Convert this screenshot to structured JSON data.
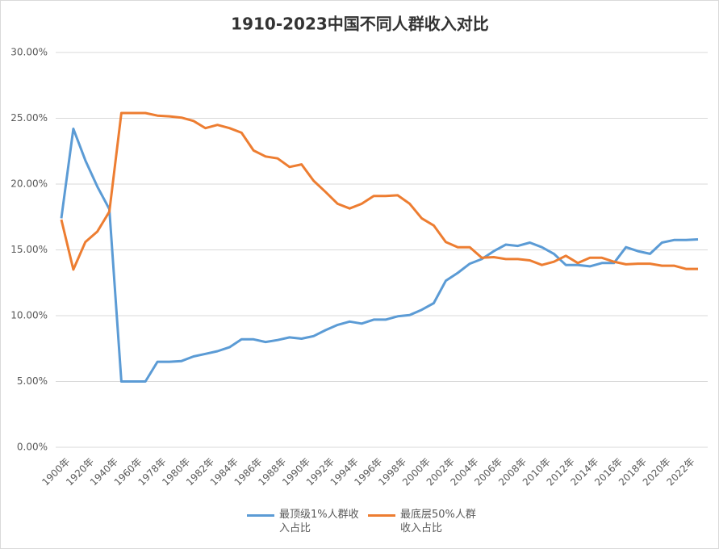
{
  "chart_data": {
    "type": "line",
    "title": "1910-2023中国不同人群收入对比",
    "categories": [
      "1900年",
      null,
      "1920年",
      null,
      "1940年",
      null,
      "1960年",
      null,
      "1978年",
      null,
      "1980年",
      null,
      "1982年",
      null,
      "1984年",
      null,
      "1986年",
      null,
      "1988年",
      null,
      "1990年",
      null,
      "1992年",
      null,
      "1994年",
      null,
      "1996年",
      null,
      "1998年",
      null,
      "2000年",
      null,
      "2002年",
      null,
      "2004年",
      null,
      "2006年",
      null,
      "2008年",
      null,
      "2010年",
      null,
      "2012年",
      null,
      "2014年",
      null,
      "2016年",
      null,
      "2018年",
      null,
      "2020年",
      null,
      "2022年",
      null
    ],
    "series": [
      {
        "name": "最顶级1%人群收入占比",
        "color": "#5b9bd5",
        "values": [
          17.4,
          24.2,
          21.8,
          19.8,
          18.1,
          5.0,
          5.0,
          5.0,
          6.5,
          6.5,
          6.55,
          6.9,
          7.1,
          7.3,
          7.6,
          8.2,
          8.2,
          8.0,
          8.15,
          8.35,
          8.25,
          8.45,
          8.9,
          9.3,
          9.55,
          9.4,
          9.7,
          9.7,
          9.95,
          10.05,
          10.45,
          10.95,
          12.65,
          13.25,
          13.95,
          14.3,
          14.9,
          15.4,
          15.3,
          15.55,
          15.2,
          14.7,
          13.85,
          13.85,
          13.75,
          14.0,
          14.0,
          15.2,
          14.9,
          14.7,
          15.55,
          15.75,
          15.75,
          15.8
        ]
      },
      {
        "name": "最底层50%人群收入占比",
        "color": "#ed7d31",
        "values": [
          17.3,
          13.5,
          15.6,
          16.4,
          17.9,
          25.4,
          25.4,
          25.4,
          25.2,
          25.15,
          25.05,
          24.8,
          24.25,
          24.5,
          24.25,
          23.9,
          22.55,
          22.1,
          21.95,
          21.3,
          21.5,
          20.25,
          19.4,
          18.5,
          18.15,
          18.5,
          19.1,
          19.1,
          19.15,
          18.5,
          17.4,
          16.85,
          15.6,
          15.2,
          15.2,
          14.4,
          14.45,
          14.3,
          14.3,
          14.2,
          13.85,
          14.1,
          14.55,
          14.0,
          14.4,
          14.4,
          14.1,
          13.9,
          13.95,
          13.95,
          13.8,
          13.8,
          13.55,
          13.55
        ]
      }
    ],
    "ylim": [
      0,
      30
    ],
    "yticks": [
      {
        "value": 0,
        "label": "0.00%"
      },
      {
        "value": 5,
        "label": "5.00%"
      },
      {
        "value": 10,
        "label": "10.00%"
      },
      {
        "value": 15,
        "label": "15.00%"
      },
      {
        "value": 20,
        "label": "20.00%"
      },
      {
        "value": 25,
        "label": "25.00%"
      },
      {
        "value": 30,
        "label": "30.00%"
      }
    ],
    "grid": true,
    "legend": "bottom"
  }
}
